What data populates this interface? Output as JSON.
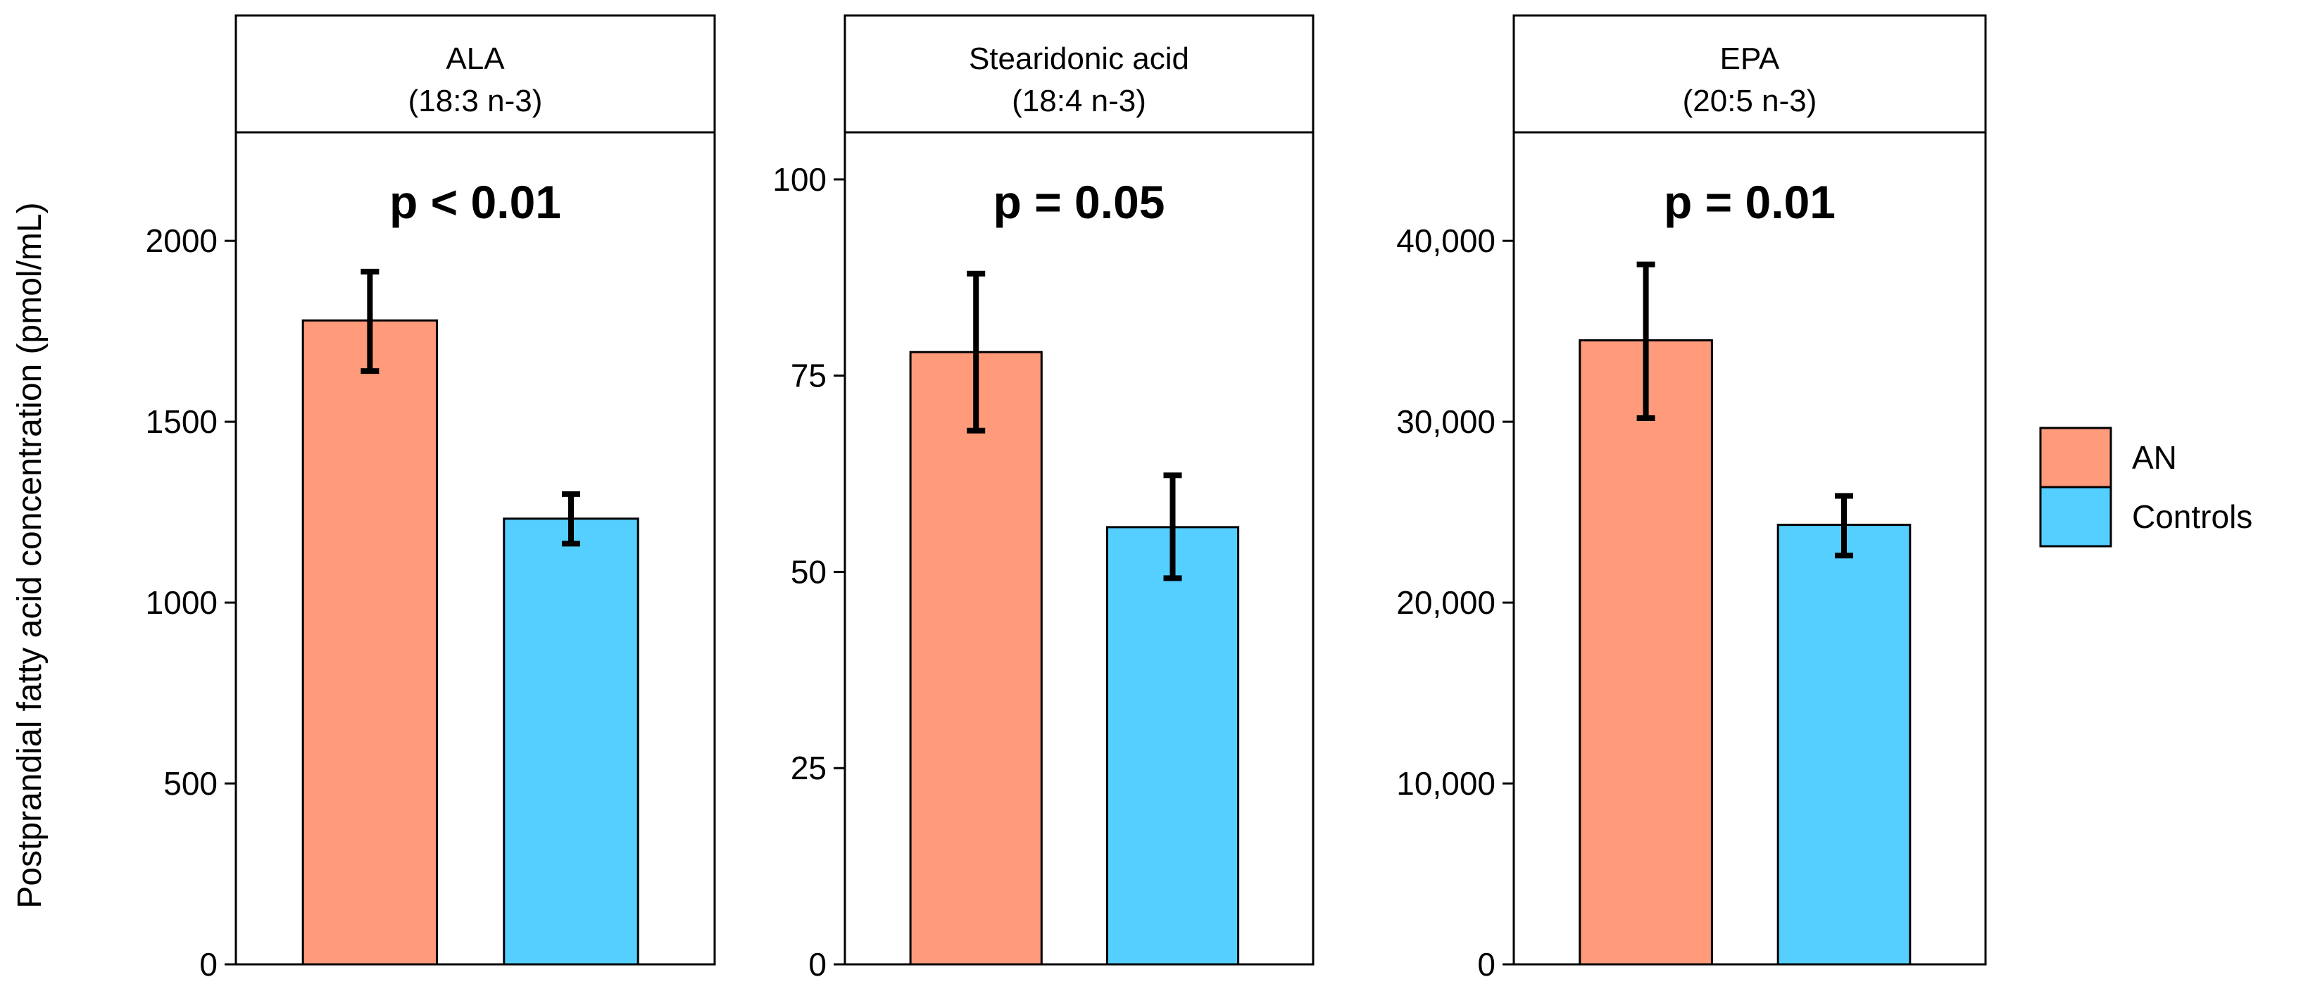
{
  "chart_data": {
    "type": "bar",
    "ylabel": "Postprandial fatty acid concentration (pmol/mL)",
    "legend": {
      "placement": "right",
      "entries": [
        {
          "name": "AN",
          "color": "#FF9A7A"
        },
        {
          "name": "Controls",
          "color": "#55CFFF"
        }
      ]
    },
    "panels": [
      {
        "title_line1": "ALA",
        "title_line2": "(18:3 n-3)",
        "annotation": "p < 0.01",
        "ylim": [
          0,
          2300
        ],
        "ticks": [
          0,
          500,
          1000,
          1500,
          2000
        ],
        "tick_labels": [
          "0",
          "500",
          "1000",
          "1500",
          "2000"
        ],
        "bars": [
          {
            "group": "AN",
            "value": 1780,
            "err_low": 1640,
            "err_high": 1915
          },
          {
            "group": "Controls",
            "value": 1232,
            "err_low": 1163,
            "err_high": 1300
          }
        ]
      },
      {
        "title_line1": "Stearidonic acid",
        "title_line2": "(18:4 n-3)",
        "annotation": "p = 0.05",
        "ylim": [
          0,
          106
        ],
        "ticks": [
          0,
          25,
          50,
          75,
          100
        ],
        "tick_labels": [
          "0",
          "25",
          "50",
          "75",
          "100"
        ],
        "bars": [
          {
            "group": "AN",
            "value": 78,
            "err_low": 68,
            "err_high": 88
          },
          {
            "group": "Controls",
            "value": 55.7,
            "err_low": 49.2,
            "err_high": 62.3
          }
        ]
      },
      {
        "title_line1": "EPA",
        "title_line2": "(20:5 n-3)",
        "annotation": "p = 0.01",
        "ylim": [
          0,
          46000
        ],
        "ticks": [
          0,
          10000,
          20000,
          30000,
          40000
        ],
        "tick_labels": [
          "0",
          "10,000",
          "20,000",
          "30,000",
          "40,000"
        ],
        "bars": [
          {
            "group": "AN",
            "value": 34500,
            "err_low": 30200,
            "err_high": 38700
          },
          {
            "group": "Controls",
            "value": 24300,
            "err_low": 22600,
            "err_high": 25900
          }
        ]
      }
    ]
  }
}
